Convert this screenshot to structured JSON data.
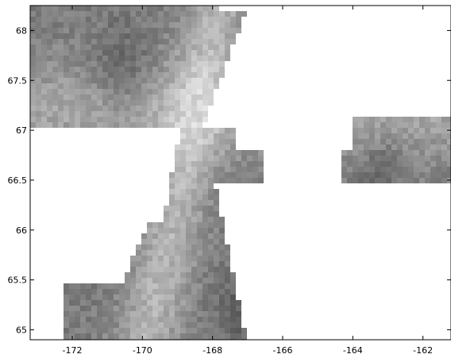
{
  "map": {
    "type": "heatmap",
    "colormap": "grayscale",
    "xlim": [
      -173.2,
      -161.2
    ],
    "ylim": [
      64.9,
      68.25
    ],
    "x_ticks": [
      {
        "value": -172,
        "label": "-172"
      },
      {
        "value": -170,
        "label": "-170"
      },
      {
        "value": -168,
        "label": "-168"
      },
      {
        "value": -166,
        "label": "-166"
      },
      {
        "value": -164,
        "label": "-164"
      },
      {
        "value": -162,
        "label": "-162"
      }
    ],
    "y_ticks": [
      {
        "value": 65,
        "label": "65"
      },
      {
        "value": 65.5,
        "label": "65.5"
      },
      {
        "value": 66,
        "label": "66"
      },
      {
        "value": 66.5,
        "label": "66.5"
      },
      {
        "value": 67,
        "label": "67"
      },
      {
        "value": 67.5,
        "label": "67.5"
      },
      {
        "value": 68,
        "label": "68"
      }
    ],
    "land_color": "#ffffff",
    "axes_color": "#000000"
  }
}
